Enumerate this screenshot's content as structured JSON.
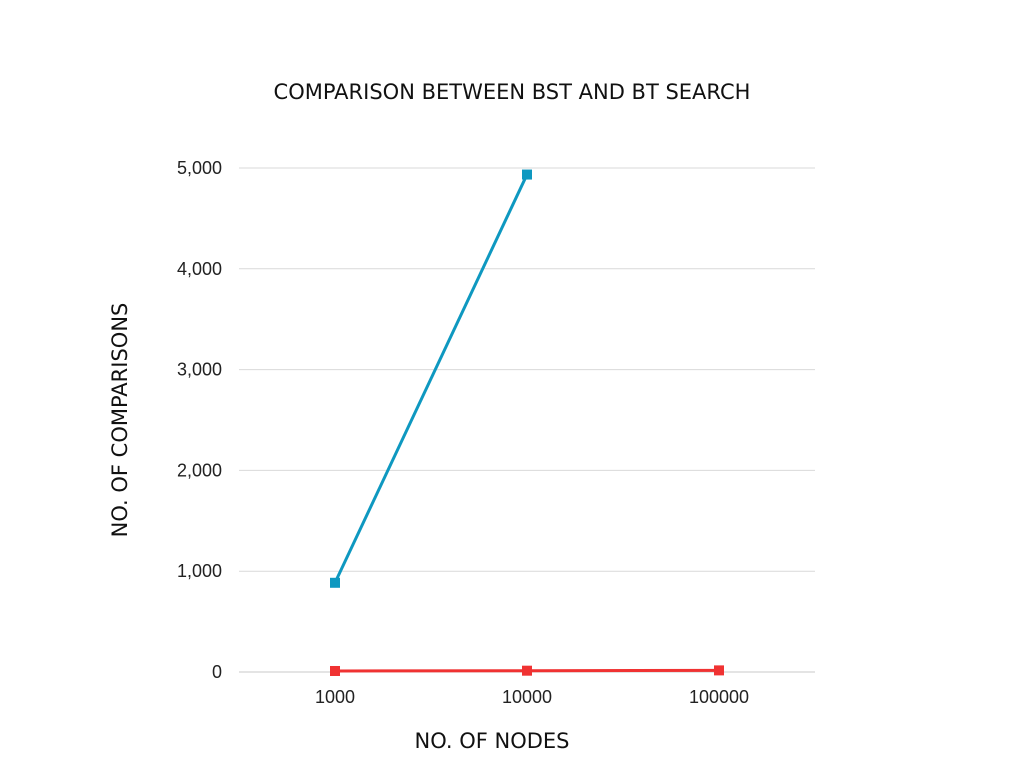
{
  "chart_data": {
    "type": "line",
    "title": "COMPARISON BETWEEN BST AND BT SEARCH",
    "xlabel": "NO. OF NODES",
    "ylabel": "NO. OF COMPARISONS",
    "categories": [
      "1000",
      "10000",
      "100000"
    ],
    "ylim": [
      0,
      5000
    ],
    "yticks": [
      0,
      1000,
      2000,
      3000,
      4000,
      5000
    ],
    "ytick_labels": [
      "0",
      "1,000",
      "2,000",
      "3,000",
      "4,000",
      "5,000"
    ],
    "grid": true,
    "legend": "none",
    "series": [
      {
        "color": "#0e98c0",
        "values": [
          885,
          4935,
          null
        ]
      },
      {
        "color": "#f03232",
        "values": [
          10,
          13,
          16
        ]
      }
    ]
  }
}
